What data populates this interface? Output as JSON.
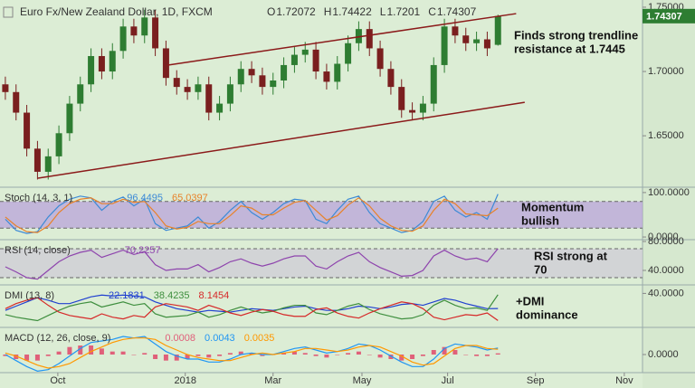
{
  "chart_data": [
    {
      "type": "candlestick",
      "title": "Euro Fx/New Zealand Dollar, 1D, FXCM",
      "ohlc_labels": [
        "O",
        "H",
        "L",
        "C"
      ],
      "open": [
        1.69,
        1.684,
        1.668,
        1.64,
        1.622,
        1.634,
        1.652,
        1.675,
        1.69,
        1.712,
        1.7,
        1.716,
        1.735,
        1.728,
        1.742,
        1.718,
        1.695,
        1.688,
        1.684,
        1.69,
        1.668,
        1.675,
        1.69,
        1.702,
        1.697,
        1.688,
        1.693,
        1.705,
        1.713,
        1.717,
        1.7,
        1.692,
        1.706,
        1.722,
        1.733,
        1.718,
        1.702,
        1.688,
        1.67,
        1.668,
        1.675,
        1.705,
        1.735,
        1.728,
        1.722,
        1.725,
        1.72072
      ],
      "high": [
        1.696,
        1.69,
        1.674,
        1.646,
        1.64,
        1.658,
        1.681,
        1.696,
        1.718,
        1.718,
        1.722,
        1.741,
        1.741,
        1.748,
        1.748,
        1.724,
        1.701,
        1.694,
        1.696,
        1.696,
        1.681,
        1.696,
        1.708,
        1.708,
        1.703,
        1.699,
        1.711,
        1.719,
        1.723,
        1.723,
        1.706,
        1.712,
        1.728,
        1.739,
        1.739,
        1.724,
        1.708,
        1.694,
        1.676,
        1.681,
        1.711,
        1.741,
        1.741,
        1.734,
        1.731,
        1.731,
        1.74422
      ],
      "low": [
        1.678,
        1.662,
        1.634,
        1.616,
        1.616,
        1.628,
        1.646,
        1.669,
        1.684,
        1.694,
        1.694,
        1.71,
        1.722,
        1.722,
        1.712,
        1.689,
        1.682,
        1.678,
        1.678,
        1.662,
        1.662,
        1.669,
        1.684,
        1.691,
        1.682,
        1.682,
        1.687,
        1.699,
        1.707,
        1.694,
        1.686,
        1.686,
        1.7,
        1.716,
        1.712,
        1.696,
        1.682,
        1.664,
        1.662,
        1.662,
        1.669,
        1.699,
        1.722,
        1.716,
        1.716,
        1.712,
        1.7201
      ],
      "close": [
        1.684,
        1.668,
        1.64,
        1.622,
        1.634,
        1.652,
        1.675,
        1.69,
        1.712,
        1.7,
        1.716,
        1.735,
        1.728,
        1.742,
        1.718,
        1.695,
        1.688,
        1.684,
        1.69,
        1.668,
        1.675,
        1.69,
        1.702,
        1.697,
        1.688,
        1.693,
        1.705,
        1.713,
        1.717,
        1.7,
        1.692,
        1.706,
        1.722,
        1.733,
        1.718,
        1.702,
        1.688,
        1.67,
        1.668,
        1.675,
        1.705,
        1.735,
        1.728,
        1.722,
        1.725,
        1.718,
        1.74307
      ],
      "up_color": "#2e7d32",
      "down_color": "#7a1f1f",
      "xlim": [
        0,
        60
      ],
      "xticks": [
        {
          "value": 5.4,
          "label": "Oct"
        },
        {
          "value": 17.3,
          "label": "2018"
        },
        {
          "value": 25.5,
          "label": "Mar"
        },
        {
          "value": 33.8,
          "label": "May"
        },
        {
          "value": 41.8,
          "label": "Jul"
        },
        {
          "value": 50,
          "label": "Sep"
        },
        {
          "value": 58.3,
          "label": "Nov"
        }
      ],
      "ylim": [
        1.61,
        1.7556
      ],
      "yticks": [
        {
          "value": 1.75,
          "label": "1.75000"
        },
        {
          "value": 1.7,
          "label": "1.70000"
        },
        {
          "value": 1.65,
          "label": "1.65000"
        }
      ],
      "trendlines": [
        {
          "x": [
            15.6,
            48.2
          ],
          "y": [
            1.7049,
            1.745
          ]
        },
        {
          "x": [
            3.55,
            49
          ],
          "y": [
            1.617,
            1.676
          ]
        }
      ],
      "trendline_color": "#8b1a1a",
      "annotation": [
        "Finds strong trendline",
        "resistance at 1.7445"
      ]
    },
    {
      "type": "line",
      "title": "Stoch (14, 3, 1)",
      "ylim": [
        -6,
        112
      ],
      "yticks": [
        {
          "value": 100,
          "label": "100.0000"
        },
        {
          "value": 0,
          "label": "0.0000"
        }
      ],
      "band": [
        20,
        80
      ],
      "band_color": "#b9a3d9",
      "series": [
        {
          "color": "#3d8ad6",
          "values": [
            40,
            15,
            8,
            12,
            45,
            70,
            85,
            92,
            88,
            60,
            80,
            90,
            70,
            85,
            30,
            15,
            20,
            25,
            45,
            20,
            35,
            60,
            80,
            55,
            40,
            55,
            75,
            85,
            82,
            40,
            30,
            60,
            85,
            92,
            55,
            30,
            20,
            10,
            15,
            35,
            80,
            92,
            60,
            45,
            55,
            40,
            96.4495
          ]
        },
        {
          "color": "#e8822a",
          "values": [
            45,
            25,
            12,
            10,
            25,
            55,
            75,
            85,
            88,
            75,
            75,
            85,
            78,
            80,
            55,
            25,
            18,
            22,
            35,
            30,
            30,
            48,
            70,
            65,
            50,
            50,
            65,
            78,
            82,
            60,
            38,
            48,
            72,
            88,
            70,
            42,
            25,
            15,
            13,
            25,
            60,
            85,
            75,
            52,
            50,
            48,
            65.0397
          ]
        }
      ],
      "annotation": [
        "Momentum",
        "bullish"
      ]
    },
    {
      "type": "line",
      "title": "RSI (14, close)",
      "ylim": [
        20,
        82.5
      ],
      "yticks": [
        {
          "value": 80,
          "label": "80.0000"
        },
        {
          "value": 40,
          "label": "40.0000"
        }
      ],
      "band": [
        30,
        70
      ],
      "band_color": "#cfcbd6",
      "series": [
        {
          "color": "#8e44ad",
          "values": [
            45,
            38,
            30,
            28,
            40,
            52,
            60,
            65,
            68,
            58,
            63,
            68,
            62,
            66,
            48,
            40,
            42,
            42,
            48,
            38,
            44,
            52,
            56,
            50,
            46,
            50,
            56,
            60,
            60,
            46,
            42,
            52,
            60,
            65,
            52,
            44,
            38,
            32,
            33,
            40,
            60,
            68,
            60,
            55,
            57,
            52,
            70.2257
          ]
        }
      ],
      "annotation": [
        "RSI strong at",
        "70"
      ]
    },
    {
      "type": "line",
      "title": "DMI (13, 8)",
      "ylim": [
        0,
        50
      ],
      "yticks": [
        {
          "value": 40,
          "label": "40.0000"
        }
      ],
      "series": [
        {
          "color": "#2040d0",
          "values": [
            20,
            25,
            30,
            35,
            32,
            28,
            28,
            32,
            36,
            38,
            37,
            38,
            37,
            36,
            30,
            26,
            22,
            20,
            18,
            20,
            19,
            18,
            20,
            22,
            21,
            20,
            22,
            24,
            25,
            22,
            20,
            20,
            22,
            25,
            24,
            22,
            24,
            27,
            28,
            26,
            30,
            34,
            32,
            28,
            25,
            22,
            22.1831
          ]
        },
        {
          "color": "#3f8f3f",
          "values": [
            15,
            12,
            10,
            8,
            14,
            20,
            25,
            28,
            30,
            24,
            27,
            30,
            26,
            28,
            16,
            12,
            13,
            14,
            18,
            12,
            15,
            20,
            24,
            20,
            17,
            19,
            23,
            26,
            26,
            17,
            15,
            20,
            25,
            28,
            21,
            16,
            13,
            10,
            11,
            15,
            26,
            32,
            26,
            22,
            23,
            20,
            38.4235
          ]
        },
        {
          "color": "#d62828",
          "values": [
            22,
            28,
            32,
            35,
            26,
            18,
            14,
            12,
            10,
            16,
            12,
            10,
            14,
            12,
            24,
            28,
            26,
            24,
            20,
            26,
            22,
            17,
            14,
            18,
            21,
            19,
            15,
            13,
            13,
            21,
            23,
            17,
            13,
            11,
            17,
            22,
            26,
            30,
            28,
            22,
            12,
            9,
            12,
            15,
            14,
            17,
            8.1454
          ]
        }
      ],
      "annotation": [
        "+DMI",
        "dominance"
      ]
    },
    {
      "type": "macd",
      "title": "MACD (12, 26, close, 9)",
      "ylim": [
        -0.012,
        0.018
      ],
      "yticks": [
        {
          "value": 0,
          "label": "0.0000"
        }
      ],
      "histogram": {
        "color": "#e0607a",
        "values": [
          -0.001,
          -0.003,
          -0.004,
          -0.004,
          -0.001,
          0.002,
          0.005,
          0.006,
          0.006,
          0.004,
          0.002,
          0.002,
          0,
          0.001,
          -0.003,
          -0.004,
          -0.004,
          -0.003,
          -0.001,
          -0.002,
          -0.001,
          0.001,
          0.002,
          0.001,
          -0.001,
          0,
          0.001,
          0.002,
          0.001,
          -0.001,
          -0.002,
          0,
          0.001,
          0.002,
          0,
          -0.002,
          -0.003,
          -0.004,
          -0.003,
          -0.001,
          0.003,
          0.005,
          0.003,
          0,
          -0.001,
          -0.001,
          0.0008
        ]
      },
      "series": [
        {
          "color": "#2196f3",
          "values": [
            0,
            -0.004,
            -0.008,
            -0.011,
            -0.01,
            -0.006,
            -0.001,
            0.004,
            0.008,
            0.009,
            0.01,
            0.012,
            0.011,
            0.012,
            0.007,
            0.002,
            -0.001,
            -0.003,
            -0.003,
            -0.005,
            -0.005,
            -0.003,
            0,
            0.001,
            0,
            0,
            0.002,
            0.004,
            0.005,
            0.003,
            0.001,
            0.002,
            0.004,
            0.007,
            0.006,
            0.003,
            -0.001,
            -0.005,
            -0.008,
            -0.008,
            -0.003,
            0.004,
            0.007,
            0.006,
            0.005,
            0.003,
            0.0043
          ]
        },
        {
          "color": "#ff9800",
          "values": [
            0.001,
            -0.001,
            -0.004,
            -0.007,
            -0.009,
            -0.008,
            -0.006,
            -0.002,
            0.002,
            0.005,
            0.008,
            0.01,
            0.011,
            0.011,
            0.01,
            0.006,
            0.003,
            0,
            -0.002,
            -0.003,
            -0.004,
            -0.004,
            -0.002,
            0,
            0.001,
            0,
            0.001,
            0.002,
            0.004,
            0.004,
            0.003,
            0.002,
            0.003,
            0.005,
            0.006,
            0.005,
            0.002,
            -0.001,
            -0.005,
            -0.007,
            -0.006,
            -0.001,
            0.004,
            0.006,
            0.006,
            0.004,
            0.0035
          ]
        }
      ]
    }
  ]
}
